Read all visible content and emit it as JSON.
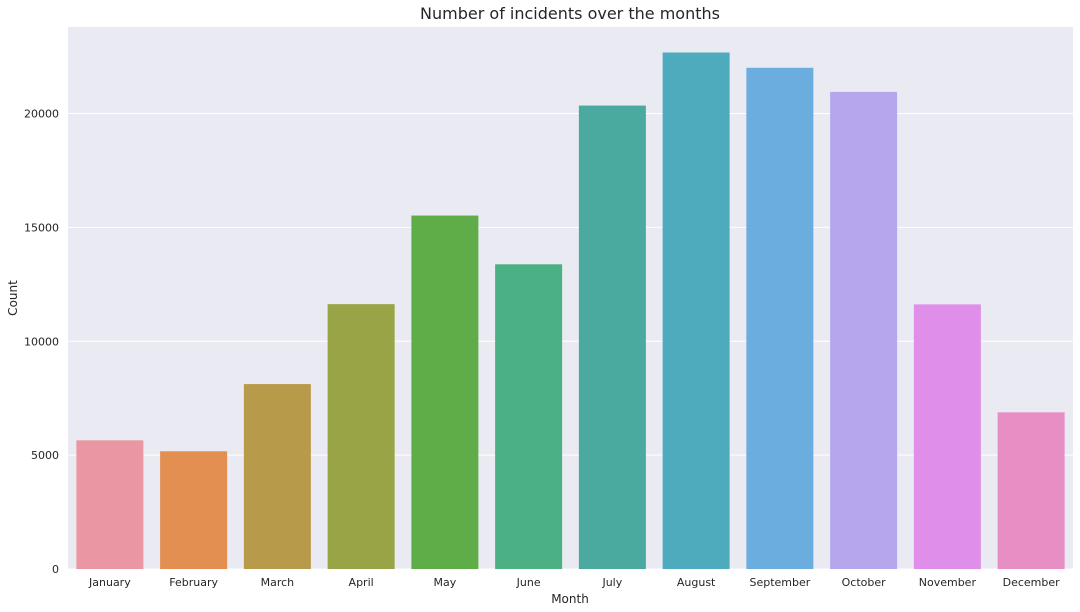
{
  "chart_data": {
    "type": "bar",
    "title": "Number of incidents over the months",
    "xlabel": "Month",
    "ylabel": "Count",
    "categories": [
      "January",
      "February",
      "March",
      "April",
      "May",
      "June",
      "July",
      "August",
      "September",
      "October",
      "November",
      "December"
    ],
    "values": [
      5650,
      5170,
      8120,
      11630,
      15520,
      13380,
      20350,
      22680,
      22010,
      20950,
      11620,
      6880
    ],
    "colors": [
      "#ea96a3",
      "#e38f52",
      "#b89a4b",
      "#98a446",
      "#5fad48",
      "#4bb084",
      "#4aaa9f",
      "#4eaabd",
      "#6aadde",
      "#b5a6ed",
      "#df8fe9",
      "#e78ec4"
    ],
    "yticks": [
      0,
      5000,
      10000,
      15000,
      20000
    ],
    "ylim": [
      0,
      23800
    ],
    "grid": true,
    "background": "#eaeaf2"
  }
}
